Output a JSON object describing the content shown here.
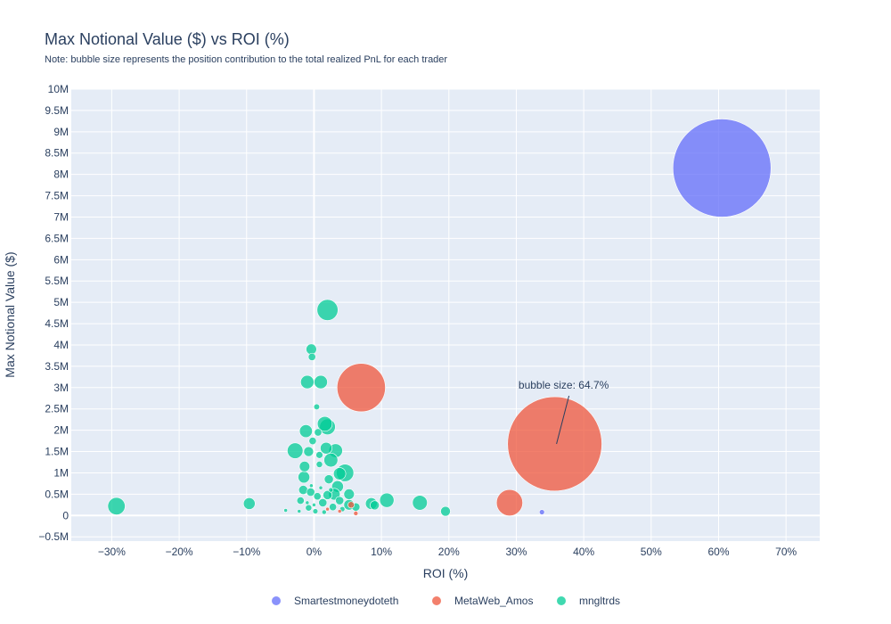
{
  "chart_data": {
    "type": "scatter",
    "title": "Max Notional Value ($) vs ROI (%)",
    "subtitle": "Note: bubble size represents the position contribution to the total realized PnL for each trader",
    "xlabel": "ROI (%)",
    "ylabel": "Max Notional Value ($)",
    "xlim": [
      -36,
      75
    ],
    "ylim": [
      -0.6,
      10
    ],
    "x_ticks": [
      -30,
      -20,
      -10,
      0,
      10,
      20,
      30,
      40,
      50,
      60,
      70
    ],
    "x_tick_labels": [
      "−30%",
      "−20%",
      "−10%",
      "0%",
      "10%",
      "20%",
      "30%",
      "40%",
      "50%",
      "60%",
      "70%"
    ],
    "y_ticks": [
      -0.5,
      0,
      0.5,
      1,
      1.5,
      2,
      2.5,
      3,
      3.5,
      4,
      4.5,
      5,
      5.5,
      6,
      6.5,
      7,
      7.5,
      8,
      8.5,
      9,
      9.5,
      10
    ],
    "y_tick_labels": [
      "−0.5M",
      "0",
      "0.5M",
      "1M",
      "1.5M",
      "2M",
      "2.5M",
      "3M",
      "3.5M",
      "4M",
      "4.5M",
      "5M",
      "5.5M",
      "6M",
      "6.5M",
      "7M",
      "7.5M",
      "8M",
      "8.5M",
      "9M",
      "9.5M",
      "10M"
    ],
    "y_unit": "millions of $",
    "size_unit": "% contribution to total realized PnL",
    "legend_position": "bottom-center",
    "series": [
      {
        "name": "Smartestmoneydoteth",
        "color": "#636efa",
        "points": [
          {
            "x": 60.5,
            "y": 8.15,
            "size": 70
          },
          {
            "x": 33.8,
            "y": 0.08,
            "size": 0.2
          }
        ]
      },
      {
        "name": "MetaWeb_Amos",
        "color": "#ef553b",
        "points": [
          {
            "x": 35.7,
            "y": 1.68,
            "size": 64.7
          },
          {
            "x": 7.0,
            "y": 3.0,
            "size": 17
          },
          {
            "x": 29.0,
            "y": 0.3,
            "size": 5
          },
          {
            "x": 6.2,
            "y": 0.05,
            "size": 0.15
          },
          {
            "x": 5.5,
            "y": 0.25,
            "size": 0.3
          },
          {
            "x": 2.0,
            "y": 0.15,
            "size": 0.1
          },
          {
            "x": 3.8,
            "y": 0.1,
            "size": 0.1
          }
        ]
      },
      {
        "name": "mngltrds",
        "color": "#00cc96",
        "points": [
          {
            "x": 2.0,
            "y": 4.82,
            "size": 3.2
          },
          {
            "x": -29.3,
            "y": 0.22,
            "size": 2.2
          },
          {
            "x": -9.6,
            "y": 0.28,
            "size": 1.0
          },
          {
            "x": -0.4,
            "y": 3.9,
            "size": 0.8
          },
          {
            "x": -0.3,
            "y": 3.72,
            "size": 0.4
          },
          {
            "x": -1.0,
            "y": 3.13,
            "size": 1.3
          },
          {
            "x": 1.0,
            "y": 3.13,
            "size": 1.3
          },
          {
            "x": 0.4,
            "y": 2.55,
            "size": 0.25
          },
          {
            "x": 1.6,
            "y": 2.15,
            "size": 1.6
          },
          {
            "x": 2.0,
            "y": 2.08,
            "size": 1.8
          },
          {
            "x": -1.2,
            "y": 1.98,
            "size": 1.2
          },
          {
            "x": 0.6,
            "y": 1.95,
            "size": 0.4
          },
          {
            "x": -0.2,
            "y": 1.75,
            "size": 0.4
          },
          {
            "x": -2.8,
            "y": 1.52,
            "size": 1.8
          },
          {
            "x": -0.8,
            "y": 1.5,
            "size": 0.7
          },
          {
            "x": 1.8,
            "y": 1.58,
            "size": 1.0
          },
          {
            "x": 3.2,
            "y": 1.52,
            "size": 1.4
          },
          {
            "x": 0.8,
            "y": 1.42,
            "size": 0.35
          },
          {
            "x": 2.5,
            "y": 1.3,
            "size": 1.4
          },
          {
            "x": -1.4,
            "y": 1.15,
            "size": 0.8
          },
          {
            "x": 0.8,
            "y": 1.2,
            "size": 0.3
          },
          {
            "x": 4.6,
            "y": 1.0,
            "size": 2.2
          },
          {
            "x": 3.8,
            "y": 0.98,
            "size": 1.1
          },
          {
            "x": -1.5,
            "y": 0.9,
            "size": 1.0
          },
          {
            "x": 2.2,
            "y": 0.85,
            "size": 0.6
          },
          {
            "x": 3.5,
            "y": 0.68,
            "size": 1.0
          },
          {
            "x": -1.6,
            "y": 0.6,
            "size": 0.6
          },
          {
            "x": -0.5,
            "y": 0.55,
            "size": 0.5
          },
          {
            "x": 3.0,
            "y": 0.5,
            "size": 1.0
          },
          {
            "x": 5.2,
            "y": 0.5,
            "size": 0.8
          },
          {
            "x": 2.0,
            "y": 0.48,
            "size": 0.6
          },
          {
            "x": 0.5,
            "y": 0.45,
            "size": 0.4
          },
          {
            "x": -2.0,
            "y": 0.35,
            "size": 0.4
          },
          {
            "x": 1.3,
            "y": 0.3,
            "size": 0.5
          },
          {
            "x": 3.8,
            "y": 0.35,
            "size": 0.5
          },
          {
            "x": 10.8,
            "y": 0.36,
            "size": 1.5
          },
          {
            "x": 8.5,
            "y": 0.28,
            "size": 1.0
          },
          {
            "x": 9.0,
            "y": 0.24,
            "size": 0.6
          },
          {
            "x": 15.7,
            "y": 0.3,
            "size": 1.6
          },
          {
            "x": 19.5,
            "y": 0.1,
            "size": 0.7
          },
          {
            "x": 5.2,
            "y": 0.25,
            "size": 0.8
          },
          {
            "x": 6.2,
            "y": 0.2,
            "size": 0.5
          },
          {
            "x": 2.8,
            "y": 0.2,
            "size": 0.4
          },
          {
            "x": -0.8,
            "y": 0.18,
            "size": 0.3
          },
          {
            "x": -4.2,
            "y": 0.12,
            "size": 0.1
          },
          {
            "x": -2.2,
            "y": 0.1,
            "size": 0.1
          },
          {
            "x": 0.2,
            "y": 0.1,
            "size": 0.2
          },
          {
            "x": 1.5,
            "y": 0.08,
            "size": 0.15
          },
          {
            "x": 4.2,
            "y": 0.15,
            "size": 0.2
          },
          {
            "x": -0.4,
            "y": 0.7,
            "size": 0.1
          },
          {
            "x": 1.0,
            "y": 0.65,
            "size": 0.1
          },
          {
            "x": -1.0,
            "y": 0.3,
            "size": 0.1
          },
          {
            "x": 0.0,
            "y": 0.25,
            "size": 0.1
          },
          {
            "x": 2.5,
            "y": 0.6,
            "size": 0.15
          }
        ]
      }
    ],
    "annotations": [
      {
        "text": "bubble size: 64.7%",
        "x": 35.7,
        "y": 1.68
      }
    ]
  }
}
